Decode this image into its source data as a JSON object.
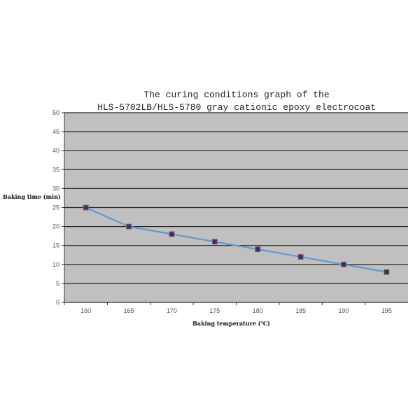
{
  "chart_data": {
    "type": "line",
    "title": [
      "The curing conditions graph of the",
      "HLS-5702LB/HLS-5780 gray cationic epoxy electrocoat"
    ],
    "xlabel": "Baking temperature (℃)",
    "ylabel": "Baking time (min)",
    "categories": [
      "160",
      "165",
      "170",
      "175",
      "180",
      "185",
      "190",
      "195"
    ],
    "values": [
      25,
      20,
      18,
      16,
      14,
      12,
      10,
      8
    ],
    "ylim": [
      0,
      50
    ],
    "yticks": [
      0,
      5,
      10,
      15,
      20,
      25,
      30,
      35,
      40,
      45,
      50
    ],
    "grid": true,
    "colors": {
      "plot_bg": "#c0c0c0",
      "line": "#5b9bd5",
      "marker_fill": "#1f3a7a",
      "marker_edge": "#c0504d",
      "grid": "#222222"
    }
  }
}
